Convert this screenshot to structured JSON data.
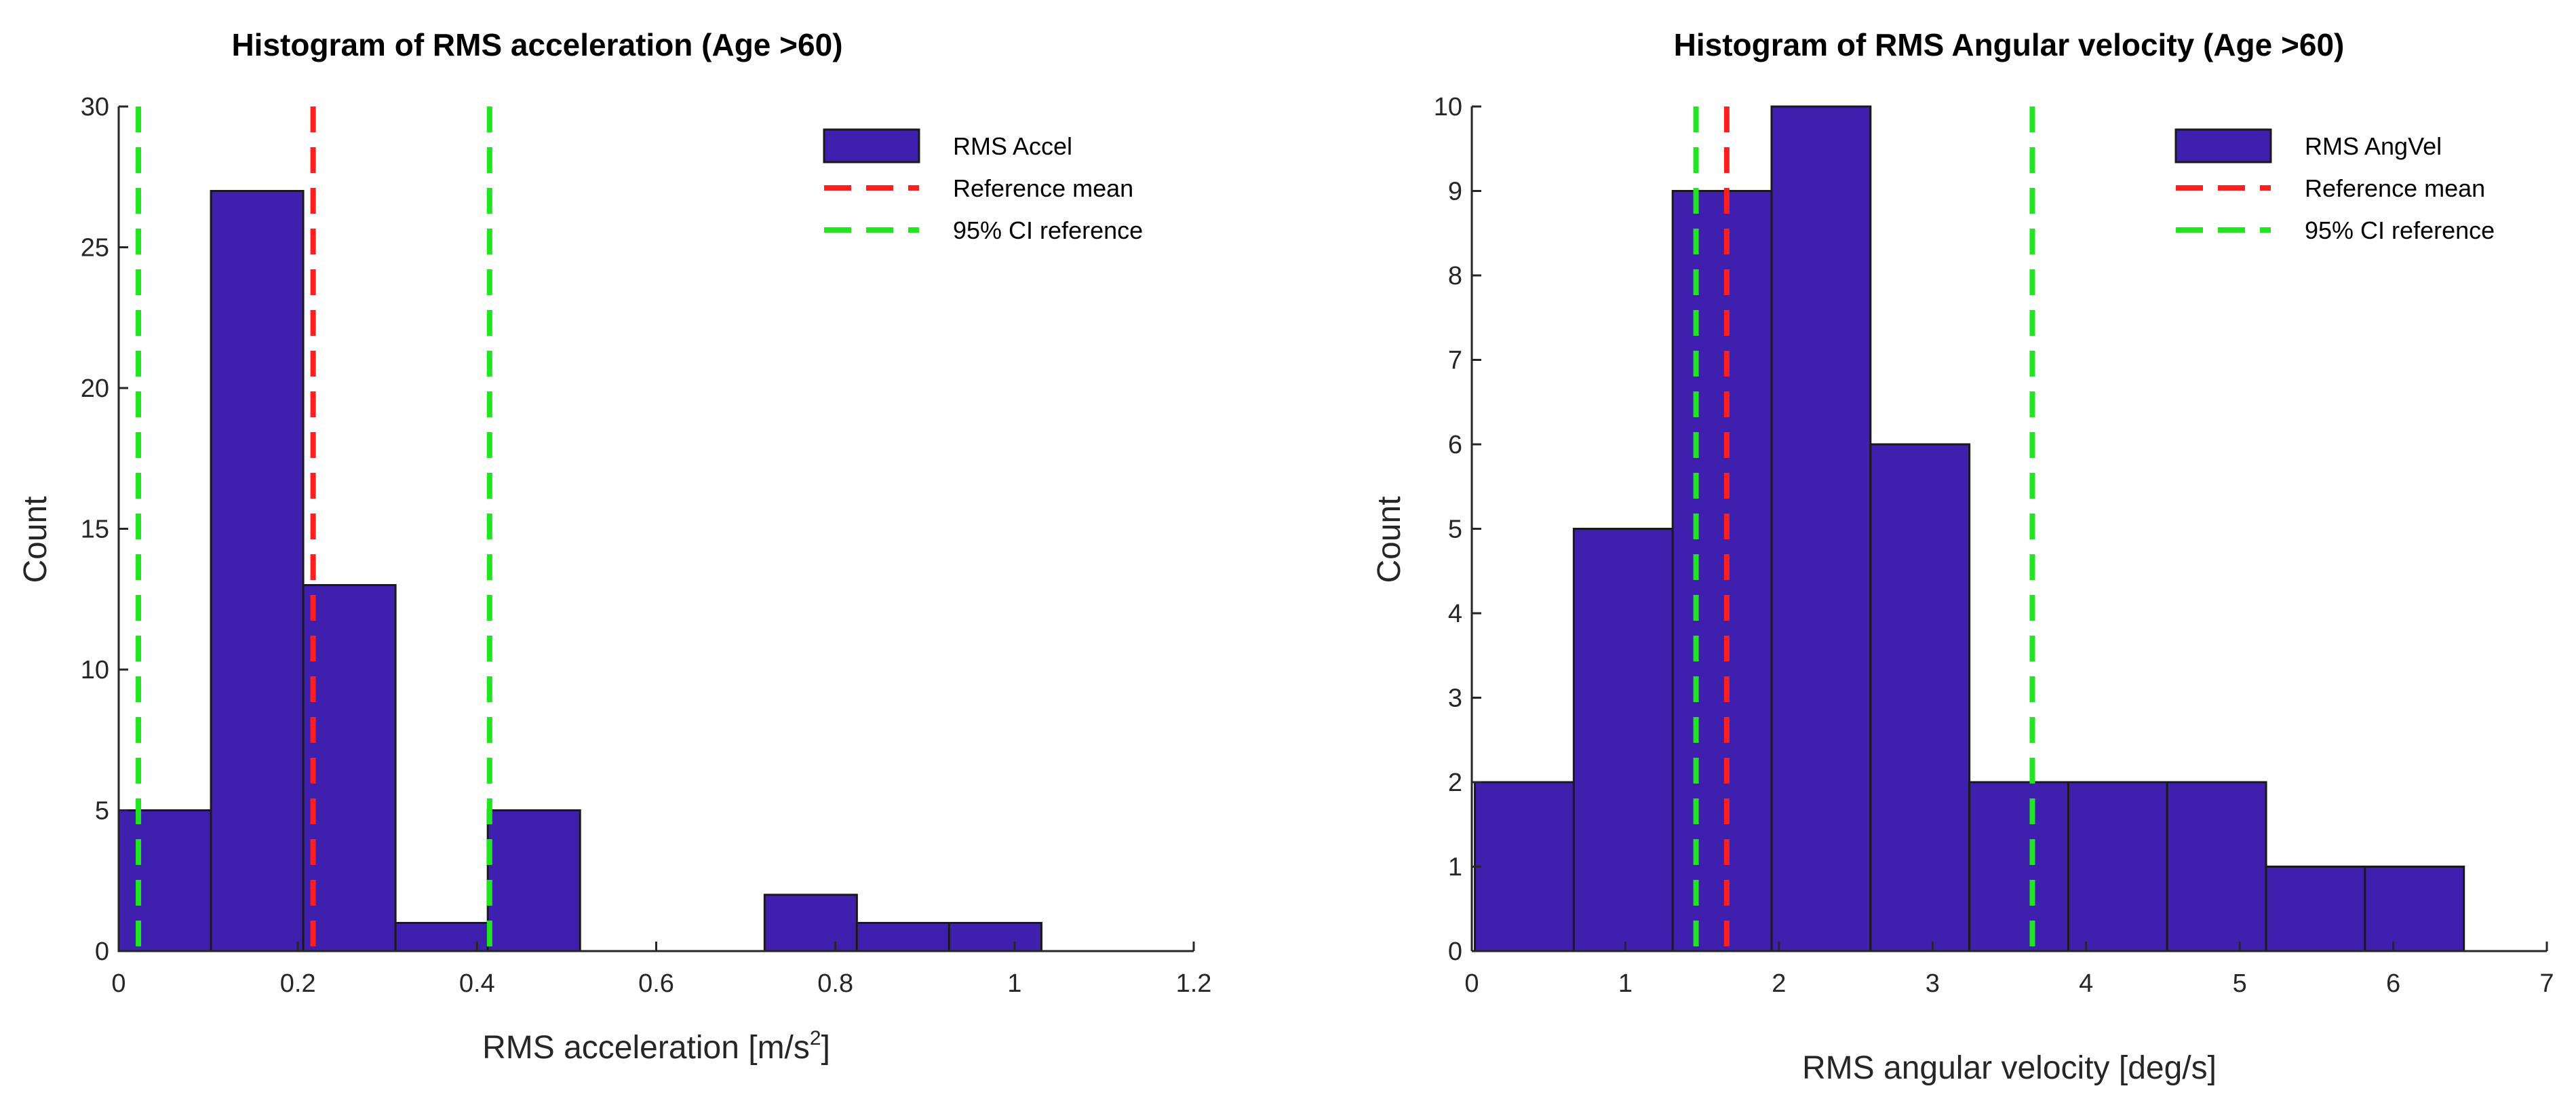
{
  "chart_data": [
    {
      "type": "bar",
      "title": "Histogram of RMS acceleration (Age >60)",
      "xlabel": "RMS acceleration [m/s",
      "xlabel_superscript": "2",
      "xlabel_suffix": "]",
      "ylabel": "Count",
      "xlim": [
        0,
        1.2
      ],
      "ylim": [
        0,
        30
      ],
      "xticks": [
        "0",
        "0.2",
        "0.4",
        "0.6",
        "0.8",
        "1",
        "1.2"
      ],
      "xtick_values": [
        0,
        0.2,
        0.4,
        0.6,
        0.8,
        1.0,
        1.2
      ],
      "yticks": [
        "0",
        "5",
        "10",
        "15",
        "20",
        "25",
        "30"
      ],
      "ytick_values": [
        0,
        5,
        10,
        15,
        20,
        25,
        30
      ],
      "bins": [
        {
          "start": 0.0,
          "end": 0.103,
          "count": 5
        },
        {
          "start": 0.103,
          "end": 0.206,
          "count": 27
        },
        {
          "start": 0.206,
          "end": 0.309,
          "count": 13
        },
        {
          "start": 0.309,
          "end": 0.412,
          "count": 1
        },
        {
          "start": 0.412,
          "end": 0.515,
          "count": 5
        },
        {
          "start": 0.515,
          "end": 0.618,
          "count": 0
        },
        {
          "start": 0.618,
          "end": 0.721,
          "count": 0
        },
        {
          "start": 0.721,
          "end": 0.824,
          "count": 2
        },
        {
          "start": 0.824,
          "end": 0.927,
          "count": 1
        },
        {
          "start": 0.927,
          "end": 1.03,
          "count": 1
        }
      ],
      "reference_mean": 0.217,
      "ci_lower": 0.022,
      "ci_upper": 0.414,
      "legend": [
        "RMS Accel",
        "Reference mean",
        "95% CI reference"
      ],
      "legend_position": "top-right"
    },
    {
      "type": "bar",
      "title": "Histogram of RMS Angular velocity (Age >60)",
      "xlabel": "RMS angular velocity [deg/s]",
      "ylabel": "Count",
      "xlim": [
        0,
        7
      ],
      "ylim": [
        0,
        10
      ],
      "xticks": [
        "0",
        "1",
        "2",
        "3",
        "4",
        "5",
        "6",
        "7"
      ],
      "xtick_values": [
        0,
        1,
        2,
        3,
        4,
        5,
        6,
        7
      ],
      "yticks": [
        "0",
        "1",
        "2",
        "3",
        "4",
        "5",
        "6",
        "7",
        "8",
        "9",
        "10"
      ],
      "ytick_values": [
        0,
        1,
        2,
        3,
        4,
        5,
        6,
        7,
        8,
        9,
        10
      ],
      "bins": [
        {
          "start": 0.02,
          "end": 0.664,
          "count": 2
        },
        {
          "start": 0.664,
          "end": 1.308,
          "count": 5
        },
        {
          "start": 1.308,
          "end": 1.952,
          "count": 9
        },
        {
          "start": 1.952,
          "end": 2.596,
          "count": 10
        },
        {
          "start": 2.596,
          "end": 3.24,
          "count": 6
        },
        {
          "start": 3.24,
          "end": 3.884,
          "count": 2
        },
        {
          "start": 3.884,
          "end": 4.528,
          "count": 2
        },
        {
          "start": 4.528,
          "end": 5.172,
          "count": 2
        },
        {
          "start": 5.172,
          "end": 5.816,
          "count": 1
        },
        {
          "start": 5.816,
          "end": 6.46,
          "count": 1
        }
      ],
      "reference_mean": 1.66,
      "ci_lower": 1.46,
      "ci_upper": 3.65,
      "legend": [
        "RMS AngVel",
        "Reference mean",
        "95% CI reference"
      ],
      "legend_position": "top-right"
    }
  ],
  "colors": {
    "bar_fill": "#3f1fad",
    "bar_edge": "#1a1a1a",
    "mean_line": "#ff1f1f",
    "ci_line": "#1fe61f",
    "axis": "#262626"
  }
}
